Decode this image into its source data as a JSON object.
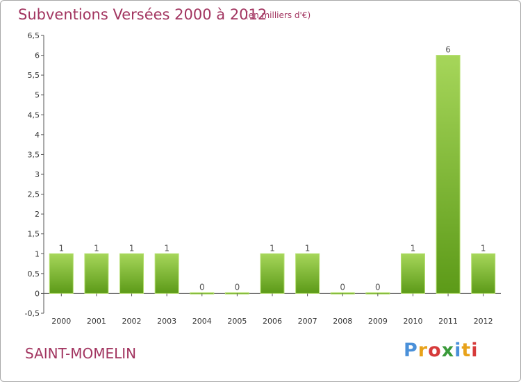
{
  "header": {
    "title": "Subventions Versées 2000 à 2012",
    "unit": "(en milliers d'€)"
  },
  "footer": {
    "commune": "SAINT-MOMELIN",
    "logo_text": "Proxiti"
  },
  "colors": {
    "title": "#a23560",
    "bar_light": "#9ccf4c",
    "bar_dark": "#5f9c1c",
    "axis": "#333333"
  },
  "chart_data": {
    "type": "bar",
    "categories": [
      "2000",
      "2001",
      "2002",
      "2003",
      "2004",
      "2005",
      "2006",
      "2007",
      "2008",
      "2009",
      "2010",
      "2011",
      "2012"
    ],
    "values": [
      1,
      1,
      1,
      1,
      0,
      0,
      1,
      1,
      0,
      0,
      1,
      6,
      1
    ],
    "value_labels": [
      "1",
      "1",
      "1",
      "1",
      "0",
      "0",
      "1",
      "1",
      "0",
      "0",
      "1",
      "6",
      "1"
    ],
    "title": "Subventions Versées 2000 à 2012",
    "ylim": [
      -0.5,
      6.5
    ],
    "yticks": [
      -0.5,
      0,
      0.5,
      1,
      1.5,
      2,
      2.5,
      3,
      3.5,
      4,
      4.5,
      5,
      5.5,
      6,
      6.5
    ],
    "ytick_labels": [
      "-0,5",
      "0",
      "0,5",
      "1",
      "1,5",
      "2",
      "2,5",
      "3",
      "3,5",
      "4",
      "4,5",
      "5",
      "5,5",
      "6",
      "6,5"
    ],
    "grid": false,
    "legend": "none"
  }
}
